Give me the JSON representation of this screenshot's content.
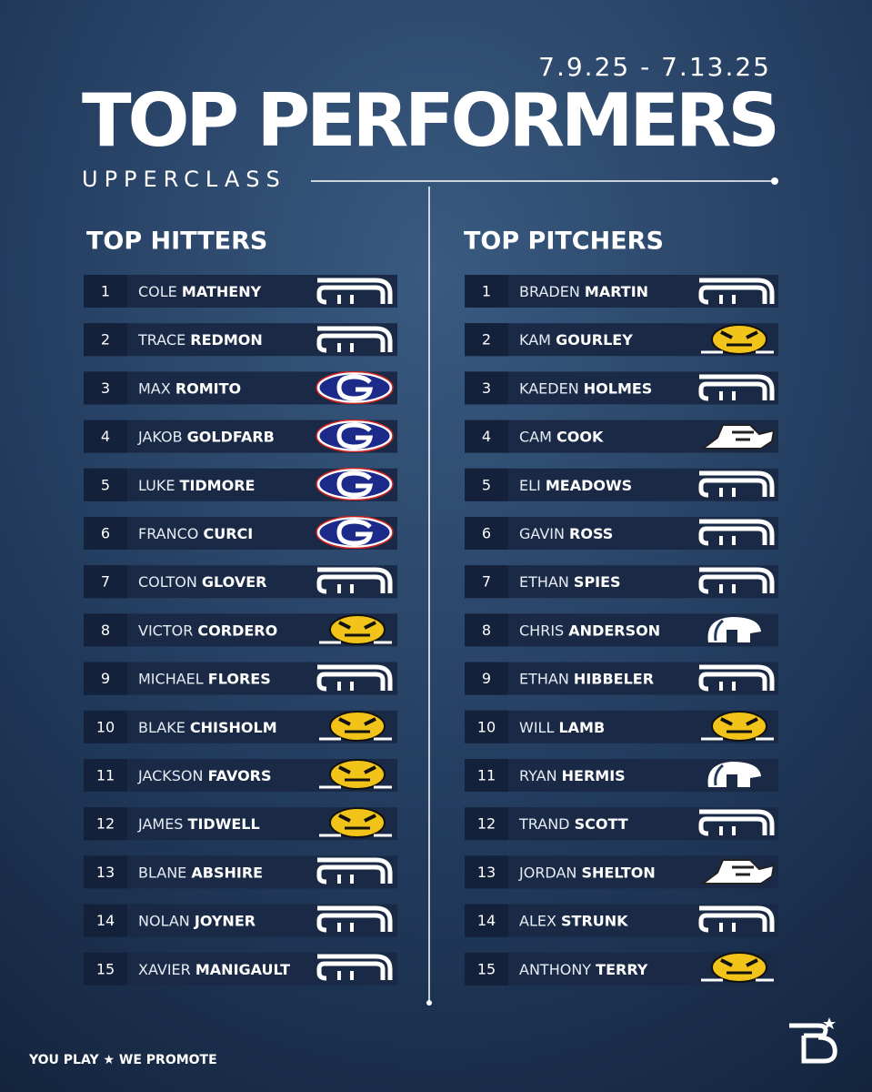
{
  "date": "7.9.25 - 7.13.25",
  "title": "TOP PERFORMERS",
  "subtitle": "UPPERCLASS",
  "hitters": {
    "heading": "TOP HITTERS",
    "rows": [
      {
        "rank": 1,
        "first": "COLE",
        "last": "MATHENY"
      },
      {
        "rank": 2,
        "first": "TRACE",
        "last": "REDMON"
      },
      {
        "rank": 3,
        "first": "MAX",
        "last": "ROMITO"
      },
      {
        "rank": 4,
        "first": "JAKOB",
        "last": "GOLDFARB"
      },
      {
        "rank": 5,
        "first": "LUKE",
        "last": "TIDMORE"
      },
      {
        "rank": 6,
        "first": "FRANCO",
        "last": "CURCI"
      },
      {
        "rank": 7,
        "first": "COLTON",
        "last": "GLOVER"
      },
      {
        "rank": 8,
        "first": "VICTOR",
        "last": "CORDERO"
      },
      {
        "rank": 9,
        "first": "MICHAEL",
        "last": "FLORES"
      },
      {
        "rank": 10,
        "first": "BLAKE",
        "last": "CHISHOLM"
      },
      {
        "rank": 11,
        "first": "JACKSON",
        "last": "FAVORS"
      },
      {
        "rank": 12,
        "first": "JAMES",
        "last": "TIDWELL"
      },
      {
        "rank": 13,
        "first": "BLANE",
        "last": "ABSHIRE"
      },
      {
        "rank": 14,
        "first": "NOLAN",
        "last": "JOYNER"
      },
      {
        "rank": 15,
        "first": "XAVIER",
        "last": "MANIGAULT"
      }
    ]
  },
  "pitchers": {
    "heading": "TOP PITCHERS",
    "rows": [
      {
        "rank": 1,
        "first": "BRADEN",
        "last": "MARTIN"
      },
      {
        "rank": 2,
        "first": "KAM",
        "last": "GOURLEY"
      },
      {
        "rank": 3,
        "first": "KAEDEN",
        "last": "HOLMES"
      },
      {
        "rank": 4,
        "first": "CAM",
        "last": "COOK"
      },
      {
        "rank": 5,
        "first": "ELI",
        "last": "MEADOWS"
      },
      {
        "rank": 6,
        "first": "GAVIN",
        "last": "ROSS"
      },
      {
        "rank": 7,
        "first": "ETHAN",
        "last": "SPIES"
      },
      {
        "rank": 8,
        "first": "CHRIS",
        "last": "ANDERSON"
      },
      {
        "rank": 9,
        "first": "ETHAN",
        "last": "HIBBELER"
      },
      {
        "rank": 10,
        "first": "WILL",
        "last": "LAMB"
      },
      {
        "rank": 11,
        "first": "RYAN",
        "last": "HERMIS"
      },
      {
        "rank": 12,
        "first": "TRAND",
        "last": "SCOTT"
      },
      {
        "rank": 13,
        "first": "JORDAN",
        "last": "SHELTON"
      },
      {
        "rank": 14,
        "first": "ALEX",
        "last": "STRUNK"
      },
      {
        "rank": 15,
        "first": "ANTHONY",
        "last": "TERRY"
      }
    ]
  },
  "footer": "YOU PLAY ★ WE PROMOTE"
}
